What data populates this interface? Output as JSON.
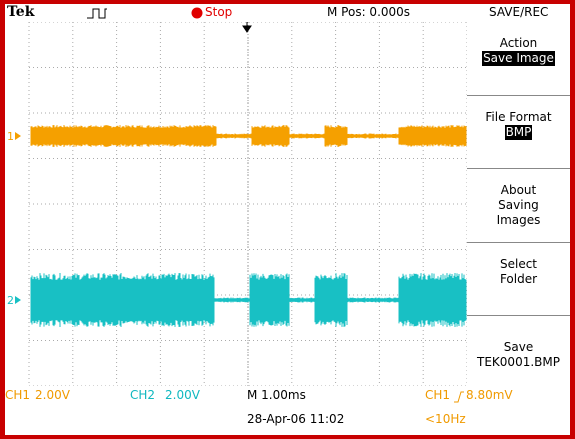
{
  "header": {
    "brand": "Tek",
    "status": "Stop",
    "position": "M Pos: 0.000s",
    "menu_title": "SAVE/REC"
  },
  "menu": [
    {
      "label": "Action",
      "value": "Save Image"
    },
    {
      "label": "File Format",
      "value": "BMP"
    },
    {
      "label": "About Saving Images"
    },
    {
      "label": "Select Folder"
    },
    {
      "label": "Save",
      "value": "TEK0001.BMP"
    }
  ],
  "channels": [
    {
      "marker": "1",
      "name": "CH1",
      "scale": "2.00V"
    },
    {
      "marker": "2",
      "name": "CH2",
      "scale": "2.00V"
    }
  ],
  "footer": {
    "timebase": "M 1.00ms",
    "datetime": "28-Apr-06 11:02",
    "trigger_source": "CH1",
    "trigger_level": "8.80mV",
    "frequency": "<10Hz"
  }
}
